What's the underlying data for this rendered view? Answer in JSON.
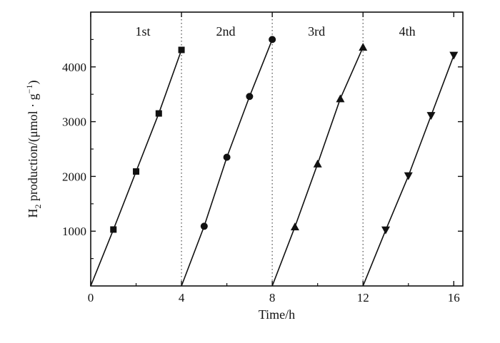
{
  "chart_data": {
    "type": "scatter",
    "title": "",
    "xlabel": "Time/h",
    "ylabel": {
      "main": "H",
      "sub": "2",
      "rest": " production/(μmol · g",
      "sup": "−1",
      "end": ")"
    },
    "xlim": [
      0,
      16.4
    ],
    "ylim": [
      0,
      5000
    ],
    "xticks": [
      "0",
      "4",
      "8",
      "12",
      "16"
    ],
    "xtick_values": [
      0,
      4,
      8,
      12,
      16
    ],
    "yticks": [
      "1000",
      "2000",
      "3000",
      "4000"
    ],
    "ytick_values": [
      1000,
      2000,
      3000,
      4000
    ],
    "cycle_dividers": [
      4,
      8,
      12
    ],
    "cycle_labels": [
      {
        "text": "1st",
        "x": 2.3
      },
      {
        "text": "2nd",
        "x": 5.95
      },
      {
        "text": "3rd",
        "x": 9.95
      },
      {
        "text": "4th",
        "x": 13.95
      }
    ],
    "label_y": 4650,
    "colors": {
      "line": "#111111",
      "marker": "#111111",
      "divider": "#555555"
    },
    "grid": false,
    "series": [
      {
        "marker": "square",
        "x": [
          0,
          1,
          2,
          3,
          4
        ],
        "y": [
          0,
          1030,
          2090,
          3150,
          4310
        ]
      },
      {
        "marker": "circle",
        "x": [
          4,
          5,
          6,
          7,
          8
        ],
        "y": [
          0,
          1090,
          2350,
          3460,
          4500
        ]
      },
      {
        "marker": "triangle-up",
        "x": [
          8,
          9,
          10,
          11,
          12
        ],
        "y": [
          0,
          1080,
          2230,
          3420,
          4360
        ]
      },
      {
        "marker": "triangle-down",
        "x": [
          12,
          13,
          14,
          15,
          16
        ],
        "y": [
          0,
          1020,
          2010,
          3110,
          4210
        ]
      }
    ]
  }
}
